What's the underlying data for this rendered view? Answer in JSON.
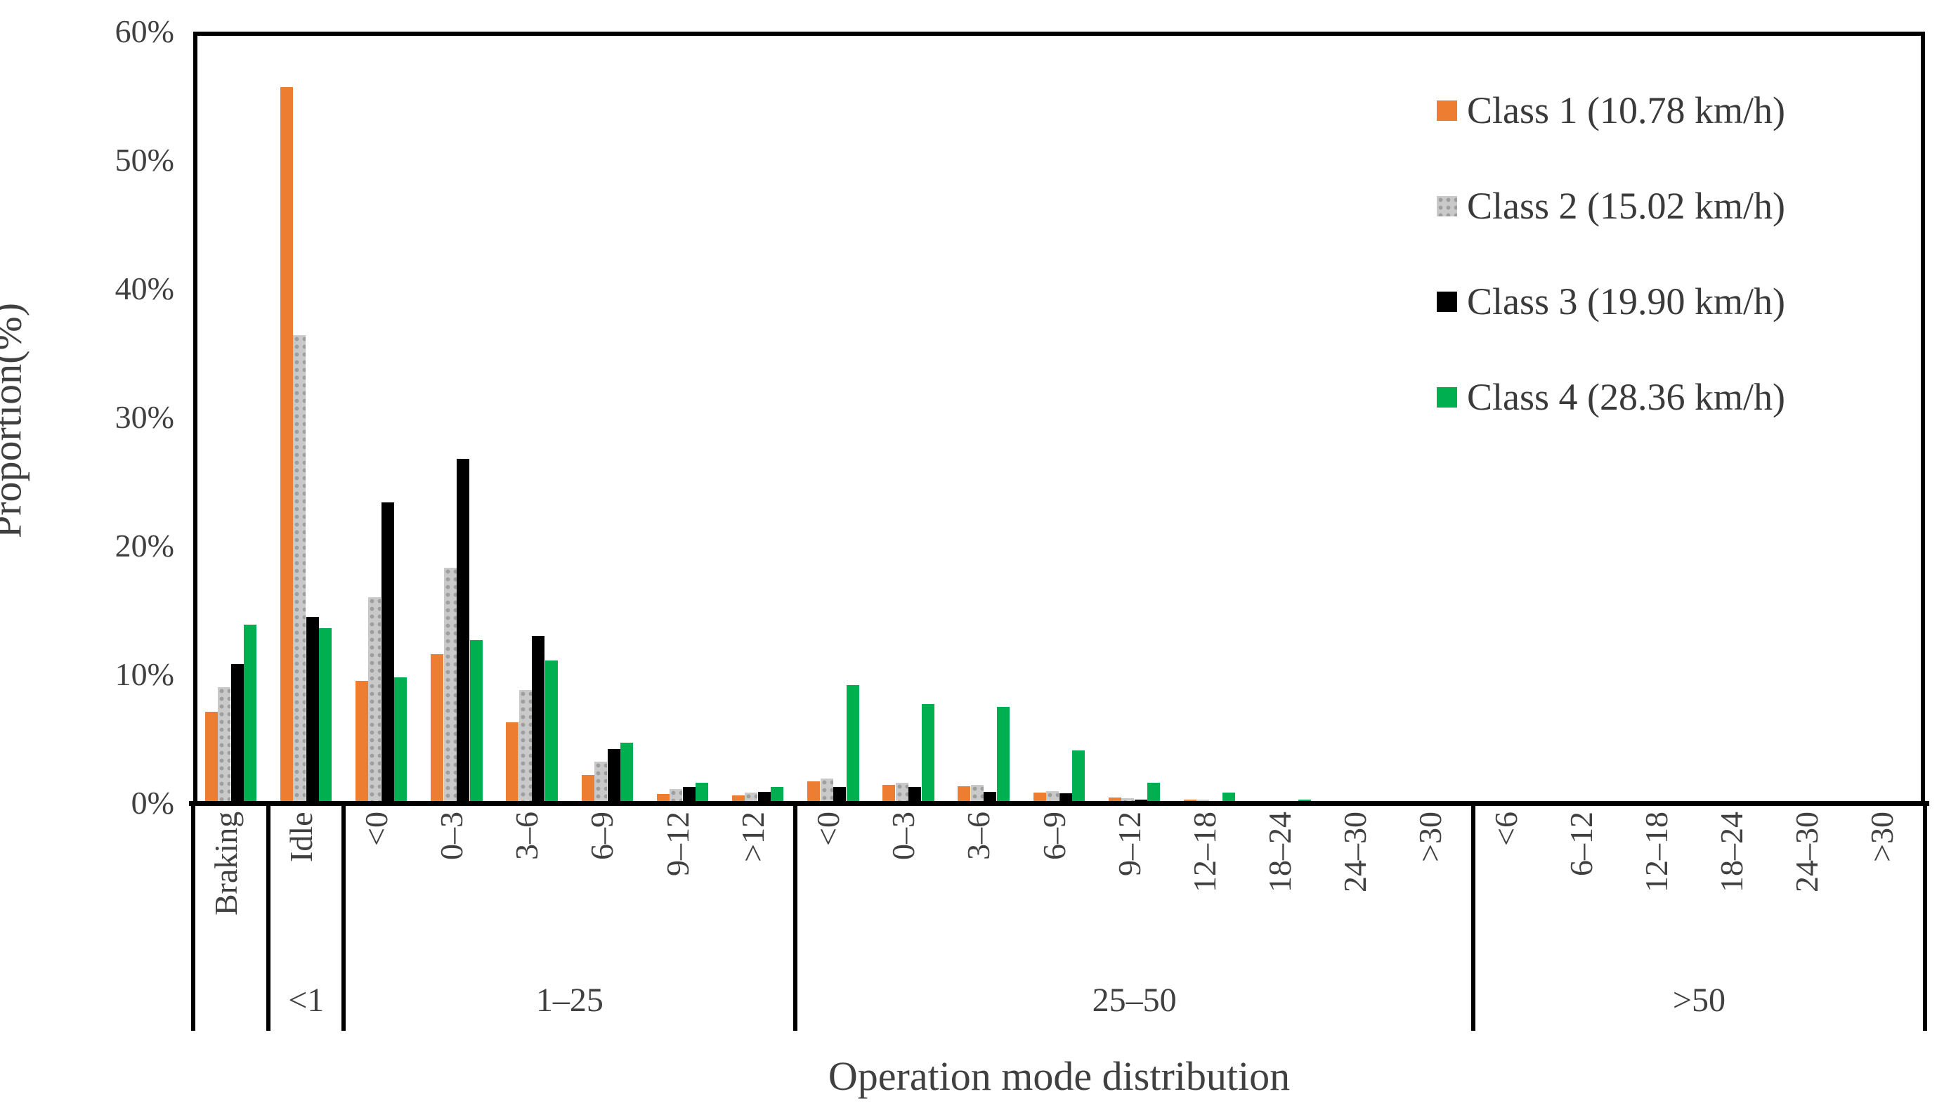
{
  "chart_data": {
    "type": "bar",
    "title": "",
    "xlabel": "Operation mode distribution",
    "ylabel": "Proportion(%)",
    "ylim": [
      0,
      60
    ],
    "ytick_step": 10,
    "yticks": [
      "0%",
      "10%",
      "20%",
      "30%",
      "40%",
      "50%",
      "60%"
    ],
    "grid": false,
    "legend_position": "top-right",
    "groups": [
      {
        "label": "",
        "bins": [
          "Braking"
        ]
      },
      {
        "label": "<1",
        "bins": [
          "Idle"
        ]
      },
      {
        "label": "1–25",
        "bins": [
          "<0",
          "0–3",
          "3–6",
          "6–9",
          "9–12",
          ">12"
        ]
      },
      {
        "label": "25–50",
        "bins": [
          "<0",
          "0–3",
          "3–6",
          "6–9",
          "9–12",
          "12–18",
          "18–24",
          "24–30",
          ">30"
        ]
      },
      {
        "label": ">50",
        "bins": [
          "<6",
          "6–12",
          "12–18",
          "18–24",
          "24–30",
          ">30"
        ]
      }
    ],
    "categories_flat": [
      "Braking",
      "Idle",
      "<0",
      "0–3",
      "3–6",
      "6–9",
      "9–12",
      ">12",
      "<0",
      "0–3",
      "3–6",
      "6–9",
      "9–12",
      "12–18",
      "18–24",
      "24–30",
      ">30",
      "<6",
      "6–12",
      "12–18",
      "18–24",
      "24–30",
      ">30"
    ],
    "series": [
      {
        "name": "Class 1 (10.78 km/h)",
        "color": "#ED7D31",
        "pattern": "solid",
        "values": [
          7.1,
          55.7,
          9.5,
          11.6,
          6.3,
          2.2,
          0.7,
          0.6,
          1.7,
          1.4,
          1.3,
          0.8,
          0.45,
          0.25,
          0.1,
          0,
          0,
          0,
          0,
          0,
          0,
          0,
          0
        ]
      },
      {
        "name": "Class 2 (15.02 km/h)",
        "color": "#C9C9C9",
        "pattern": "dots",
        "values": [
          9.0,
          36.4,
          16.0,
          18.3,
          8.8,
          3.2,
          1.1,
          0.8,
          1.9,
          1.6,
          1.4,
          0.95,
          0.4,
          0.25,
          0.1,
          0,
          0,
          0,
          0,
          0,
          0,
          0,
          0
        ]
      },
      {
        "name": "Class 3 (19.90 km/h)",
        "color": "#000000",
        "pattern": "solid",
        "values": [
          10.8,
          14.5,
          23.4,
          26.8,
          13.0,
          4.2,
          1.25,
          0.9,
          1.25,
          1.25,
          0.9,
          0.75,
          0.25,
          0.1,
          0.1,
          0,
          0,
          0,
          0,
          0,
          0,
          0,
          0
        ]
      },
      {
        "name": "Class 4 (28.36 km/h)",
        "color": "#00B050",
        "pattern": "solid",
        "values": [
          13.9,
          13.6,
          9.8,
          12.7,
          11.1,
          4.7,
          1.6,
          1.25,
          9.2,
          7.7,
          7.5,
          4.1,
          1.6,
          0.8,
          0.25,
          0,
          0,
          0,
          0,
          0,
          0,
          0,
          0
        ]
      }
    ]
  }
}
